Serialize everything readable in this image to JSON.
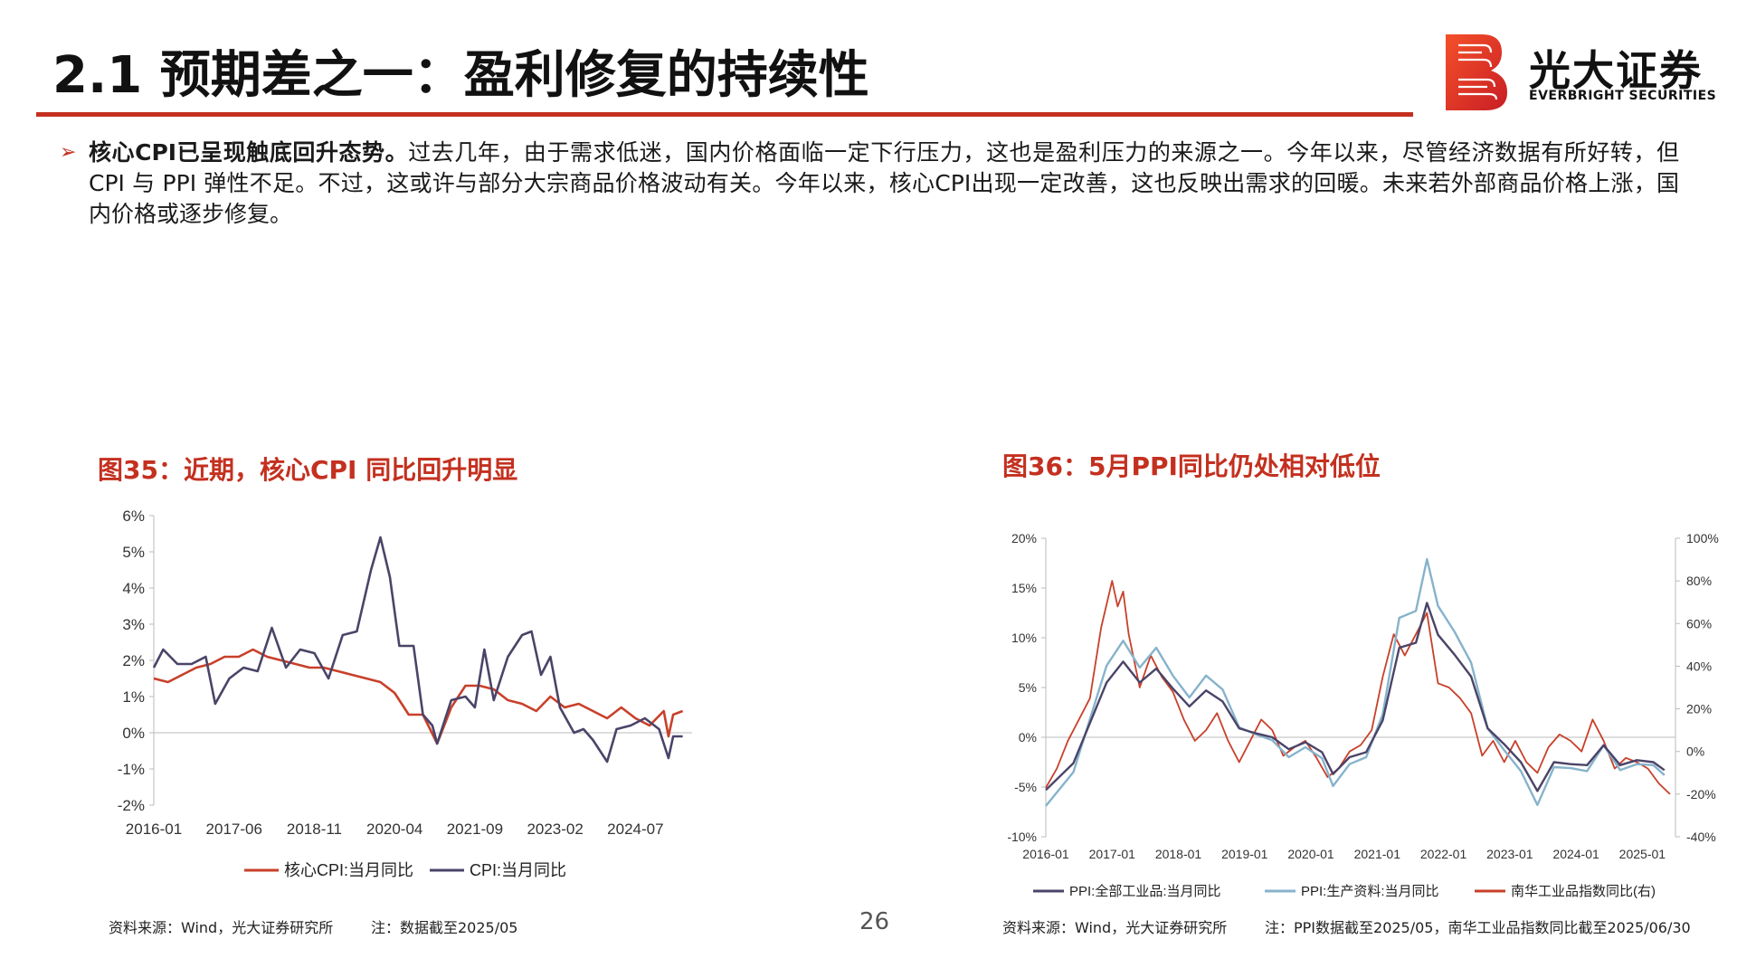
{
  "header": {
    "title": "2.1 预期差之一：盈利修复的持续性",
    "logo_cn": "光大证券",
    "logo_en": "EVERBRIGHT SECURITIES"
  },
  "bullet": {
    "bold": "核心CPI已呈现触底回升态势。",
    "text": "过去几年，由于需求低迷，国内价格面临一定下行压力，这也是盈利压力的来源之一。今年以来，尽管经济数据有所好转，但 CPI 与 PPI 弹性不足。不过，这或许与部分大宗商品价格波动有关。今年以来，核心CPI出现一定改善，这也反映出需求的回暖。未来若外部商品价格上涨，国内价格或逐步修复。"
  },
  "fig35": {
    "title": "图35：近期，核心CPI 同比回升明显",
    "source": "资料来源：Wind，光大证券研究所",
    "note": "注：数据截至2025/05"
  },
  "fig36": {
    "title": "图36：5月PPI同比仍处相对低位",
    "source": "资料来源：Wind，光大证券研究所",
    "note": "注：PPI数据截至2025/05，南华工业品指数同比截至2025/06/30"
  },
  "page_number": "26",
  "colors": {
    "accent": "#c4301f",
    "navy": "#4a4468",
    "lightblue": "#86b3cb",
    "orange": "#c8402a"
  },
  "chart_data": [
    {
      "type": "line",
      "ylim": [
        -2,
        6
      ],
      "y_ticks": [
        "6%",
        "5%",
        "4%",
        "3%",
        "2%",
        "1%",
        "0%",
        "-1%",
        "-2%"
      ],
      "x_ticks": [
        "2016-01",
        "2017-06",
        "2018-11",
        "2020-04",
        "2021-09",
        "2023-02",
        "2024-07"
      ],
      "unit": "%",
      "series": [
        {
          "name": "核心CPI:当月同比",
          "color": "#c8402a",
          "points": [
            [
              "2016-01",
              1.5
            ],
            [
              "2016-04",
              1.4
            ],
            [
              "2016-07",
              1.6
            ],
            [
              "2016-10",
              1.8
            ],
            [
              "2017-01",
              1.9
            ],
            [
              "2017-04",
              2.1
            ],
            [
              "2017-07",
              2.1
            ],
            [
              "2017-10",
              2.3
            ],
            [
              "2018-01",
              2.1
            ],
            [
              "2018-04",
              2.0
            ],
            [
              "2018-07",
              1.9
            ],
            [
              "2018-10",
              1.8
            ],
            [
              "2019-01",
              1.8
            ],
            [
              "2019-04",
              1.7
            ],
            [
              "2019-07",
              1.6
            ],
            [
              "2019-10",
              1.5
            ],
            [
              "2020-01",
              1.4
            ],
            [
              "2020-04",
              1.1
            ],
            [
              "2020-07",
              0.5
            ],
            [
              "2020-10",
              0.5
            ],
            [
              "2021-01",
              -0.3
            ],
            [
              "2021-04",
              0.7
            ],
            [
              "2021-07",
              1.3
            ],
            [
              "2021-10",
              1.3
            ],
            [
              "2022-01",
              1.2
            ],
            [
              "2022-04",
              0.9
            ],
            [
              "2022-07",
              0.8
            ],
            [
              "2022-10",
              0.6
            ],
            [
              "2023-01",
              1.0
            ],
            [
              "2023-04",
              0.7
            ],
            [
              "2023-07",
              0.8
            ],
            [
              "2023-10",
              0.6
            ],
            [
              "2024-01",
              0.4
            ],
            [
              "2024-04",
              0.7
            ],
            [
              "2024-07",
              0.4
            ],
            [
              "2024-10",
              0.2
            ],
            [
              "2025-01",
              0.6
            ],
            [
              "2025-02",
              -0.1
            ],
            [
              "2025-03",
              0.5
            ],
            [
              "2025-05",
              0.6
            ]
          ]
        },
        {
          "name": "CPI:当月同比",
          "color": "#4a4468",
          "points": [
            [
              "2016-01",
              1.8
            ],
            [
              "2016-03",
              2.3
            ],
            [
              "2016-06",
              1.9
            ],
            [
              "2016-09",
              1.9
            ],
            [
              "2016-12",
              2.1
            ],
            [
              "2017-02",
              0.8
            ],
            [
              "2017-05",
              1.5
            ],
            [
              "2017-08",
              1.8
            ],
            [
              "2017-11",
              1.7
            ],
            [
              "2018-02",
              2.9
            ],
            [
              "2018-05",
              1.8
            ],
            [
              "2018-08",
              2.3
            ],
            [
              "2018-11",
              2.2
            ],
            [
              "2019-02",
              1.5
            ],
            [
              "2019-05",
              2.7
            ],
            [
              "2019-08",
              2.8
            ],
            [
              "2019-11",
              4.5
            ],
            [
              "2020-01",
              5.4
            ],
            [
              "2020-03",
              4.3
            ],
            [
              "2020-05",
              2.4
            ],
            [
              "2020-08",
              2.4
            ],
            [
              "2020-10",
              0.5
            ],
            [
              "2020-12",
              0.2
            ],
            [
              "2021-01",
              -0.3
            ],
            [
              "2021-04",
              0.9
            ],
            [
              "2021-07",
              1.0
            ],
            [
              "2021-09",
              0.7
            ],
            [
              "2021-11",
              2.3
            ],
            [
              "2022-01",
              0.9
            ],
            [
              "2022-04",
              2.1
            ],
            [
              "2022-07",
              2.7
            ],
            [
              "2022-09",
              2.8
            ],
            [
              "2022-11",
              1.6
            ],
            [
              "2023-01",
              2.1
            ],
            [
              "2023-03",
              0.7
            ],
            [
              "2023-06",
              0.0
            ],
            [
              "2023-08",
              0.1
            ],
            [
              "2023-10",
              -0.2
            ],
            [
              "2024-01",
              -0.8
            ],
            [
              "2024-03",
              0.1
            ],
            [
              "2024-06",
              0.2
            ],
            [
              "2024-09",
              0.4
            ],
            [
              "2024-12",
              0.1
            ],
            [
              "2025-02",
              -0.7
            ],
            [
              "2025-03",
              -0.1
            ],
            [
              "2025-05",
              -0.1
            ]
          ]
        }
      ]
    },
    {
      "type": "line",
      "ylim_left": [
        -10,
        20
      ],
      "ylim_right": [
        -40,
        100
      ],
      "y_ticks_left": [
        "20%",
        "15%",
        "10%",
        "5%",
        "0%",
        "-5%",
        "-10%"
      ],
      "y_ticks_right": [
        "100%",
        "80%",
        "60%",
        "40%",
        "20%",
        "0%",
        "-20%",
        "-40%"
      ],
      "x_ticks": [
        "2016-01",
        "2017-01",
        "2018-01",
        "2019-01",
        "2020-01",
        "2021-01",
        "2022-01",
        "2023-01",
        "2024-01",
        "2025-01"
      ],
      "series": [
        {
          "name": "PPI:全部工业品:当月同比",
          "color": "#4a4468",
          "axis": "left",
          "points": [
            [
              "2016-01",
              -5.3
            ],
            [
              "2016-06",
              -2.6
            ],
            [
              "2016-12",
              5.5
            ],
            [
              "2017-03",
              7.6
            ],
            [
              "2017-06",
              5.5
            ],
            [
              "2017-09",
              6.9
            ],
            [
              "2017-12",
              4.9
            ],
            [
              "2018-03",
              3.1
            ],
            [
              "2018-06",
              4.7
            ],
            [
              "2018-09",
              3.6
            ],
            [
              "2018-12",
              0.9
            ],
            [
              "2019-03",
              0.4
            ],
            [
              "2019-06",
              0.0
            ],
            [
              "2019-09",
              -1.2
            ],
            [
              "2019-12",
              -0.5
            ],
            [
              "2020-03",
              -1.5
            ],
            [
              "2020-05",
              -3.7
            ],
            [
              "2020-08",
              -2.0
            ],
            [
              "2020-11",
              -1.5
            ],
            [
              "2021-02",
              1.7
            ],
            [
              "2021-05",
              9.0
            ],
            [
              "2021-08",
              9.5
            ],
            [
              "2021-10",
              13.5
            ],
            [
              "2021-12",
              10.3
            ],
            [
              "2022-03",
              8.3
            ],
            [
              "2022-06",
              6.1
            ],
            [
              "2022-09",
              0.9
            ],
            [
              "2022-12",
              -0.7
            ],
            [
              "2023-03",
              -2.5
            ],
            [
              "2023-06",
              -5.4
            ],
            [
              "2023-09",
              -2.5
            ],
            [
              "2023-12",
              -2.7
            ],
            [
              "2024-03",
              -2.8
            ],
            [
              "2024-06",
              -0.8
            ],
            [
              "2024-09",
              -2.8
            ],
            [
              "2024-12",
              -2.3
            ],
            [
              "2025-03",
              -2.5
            ],
            [
              "2025-05",
              -3.3
            ]
          ]
        },
        {
          "name": "PPI:生产资料:当月同比",
          "color": "#86b3cb",
          "axis": "left",
          "points": [
            [
              "2016-01",
              -6.9
            ],
            [
              "2016-06",
              -3.5
            ],
            [
              "2016-12",
              7.2
            ],
            [
              "2017-03",
              9.7
            ],
            [
              "2017-06",
              7.0
            ],
            [
              "2017-09",
              9.0
            ],
            [
              "2017-12",
              6.2
            ],
            [
              "2018-03",
              4.0
            ],
            [
              "2018-06",
              6.2
            ],
            [
              "2018-09",
              4.8
            ],
            [
              "2018-12",
              1.0
            ],
            [
              "2019-03",
              0.3
            ],
            [
              "2019-06",
              -0.3
            ],
            [
              "2019-09",
              -2.0
            ],
            [
              "2019-12",
              -1.0
            ],
            [
              "2020-03",
              -2.1
            ],
            [
              "2020-05",
              -4.9
            ],
            [
              "2020-08",
              -2.7
            ],
            [
              "2020-11",
              -2.0
            ],
            [
              "2021-02",
              2.3
            ],
            [
              "2021-05",
              12.0
            ],
            [
              "2021-08",
              12.7
            ],
            [
              "2021-10",
              17.9
            ],
            [
              "2021-12",
              13.2
            ],
            [
              "2022-03",
              10.6
            ],
            [
              "2022-06",
              7.5
            ],
            [
              "2022-09",
              0.9
            ],
            [
              "2022-12",
              -1.3
            ],
            [
              "2023-03",
              -3.4
            ],
            [
              "2023-06",
              -6.8
            ],
            [
              "2023-09",
              -3.0
            ],
            [
              "2023-12",
              -3.1
            ],
            [
              "2024-03",
              -3.4
            ],
            [
              "2024-06",
              -0.8
            ],
            [
              "2024-09",
              -3.3
            ],
            [
              "2024-12",
              -2.7
            ],
            [
              "2025-03",
              -2.8
            ],
            [
              "2025-05",
              -3.8
            ]
          ]
        },
        {
          "name": "南华工业品指数同比(右)",
          "color": "#c8402a",
          "axis": "right",
          "points": [
            [
              "2016-01",
              -17
            ],
            [
              "2016-03",
              -8
            ],
            [
              "2016-05",
              5
            ],
            [
              "2016-07",
              15
            ],
            [
              "2016-09",
              25
            ],
            [
              "2016-11",
              58
            ],
            [
              "2017-01",
              80
            ],
            [
              "2017-02",
              68
            ],
            [
              "2017-03",
              75
            ],
            [
              "2017-04",
              55
            ],
            [
              "2017-06",
              30
            ],
            [
              "2017-08",
              45
            ],
            [
              "2017-10",
              35
            ],
            [
              "2017-12",
              28
            ],
            [
              "2018-02",
              15
            ],
            [
              "2018-04",
              5
            ],
            [
              "2018-06",
              10
            ],
            [
              "2018-08",
              18
            ],
            [
              "2018-10",
              5
            ],
            [
              "2018-12",
              -5
            ],
            [
              "2019-02",
              5
            ],
            [
              "2019-04",
              15
            ],
            [
              "2019-06",
              10
            ],
            [
              "2019-08",
              -2
            ],
            [
              "2019-10",
              2
            ],
            [
              "2019-12",
              5
            ],
            [
              "2020-02",
              -3
            ],
            [
              "2020-04",
              -12
            ],
            [
              "2020-06",
              -8
            ],
            [
              "2020-08",
              0
            ],
            [
              "2020-10",
              3
            ],
            [
              "2020-12",
              10
            ],
            [
              "2021-02",
              35
            ],
            [
              "2021-04",
              55
            ],
            [
              "2021-06",
              45
            ],
            [
              "2021-08",
              55
            ],
            [
              "2021-10",
              65
            ],
            [
              "2021-12",
              32
            ],
            [
              "2022-02",
              30
            ],
            [
              "2022-04",
              25
            ],
            [
              "2022-06",
              18
            ],
            [
              "2022-08",
              -2
            ],
            [
              "2022-10",
              5
            ],
            [
              "2022-12",
              -5
            ],
            [
              "2023-02",
              5
            ],
            [
              "2023-04",
              -5
            ],
            [
              "2023-06",
              -10
            ],
            [
              "2023-08",
              2
            ],
            [
              "2023-10",
              8
            ],
            [
              "2023-12",
              5
            ],
            [
              "2024-02",
              0
            ],
            [
              "2024-04",
              15
            ],
            [
              "2024-06",
              5
            ],
            [
              "2024-08",
              -8
            ],
            [
              "2024-10",
              -3
            ],
            [
              "2024-12",
              -5
            ],
            [
              "2025-02",
              -8
            ],
            [
              "2025-04",
              -15
            ],
            [
              "2025-06",
              -20
            ]
          ]
        }
      ]
    }
  ]
}
